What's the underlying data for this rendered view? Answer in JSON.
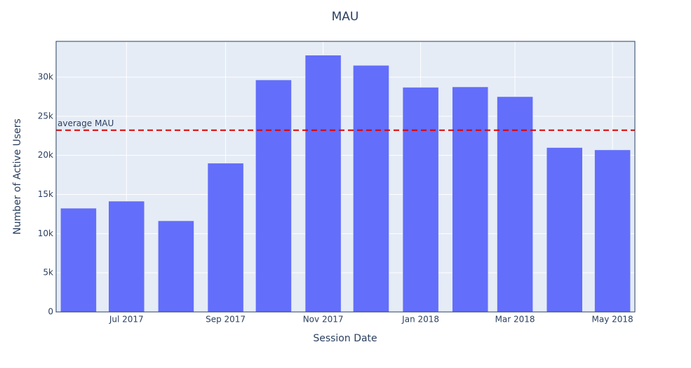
{
  "chart_data": {
    "type": "bar",
    "title": "MAU",
    "x_label": "Session Date",
    "y_label": "Number of Active Users",
    "x": [
      "2017-06",
      "2017-07",
      "2017-08",
      "2017-09",
      "2017-10",
      "2017-11",
      "2017-12",
      "2018-01",
      "2018-02",
      "2018-03",
      "2018-04",
      "2018-05"
    ],
    "values": [
      13250,
      14150,
      11640,
      19000,
      29640,
      32800,
      31500,
      28700,
      28750,
      27500,
      21000,
      20700
    ],
    "color": "#636efa",
    "xlim": [
      "2017-05-18",
      "2018-05-15"
    ],
    "xticks": [
      {
        "value": "2017-07",
        "label": "Jul 2017"
      },
      {
        "value": "2017-09",
        "label": "Sep 2017"
      },
      {
        "value": "2017-11",
        "label": "Nov 2017"
      },
      {
        "value": "2018-01",
        "label": "Jan 2018"
      },
      {
        "value": "2018-03",
        "label": "Mar 2018"
      },
      {
        "value": "2018-05",
        "label": "May 2018"
      }
    ],
    "ylim": [
      0,
      34570
    ],
    "yticks": [
      0,
      {
        "value": 5000,
        "label": "5k"
      },
      {
        "value": 10000,
        "label": "10k"
      },
      {
        "value": 15000,
        "label": "15k"
      },
      {
        "value": 20000,
        "label": "20k"
      },
      {
        "value": 25000,
        "label": "25k"
      },
      {
        "value": 30000,
        "label": "30k"
      }
    ],
    "grid": true,
    "hline": {
      "value": 23220,
      "label": "average MAU",
      "color": "#e00000"
    }
  }
}
